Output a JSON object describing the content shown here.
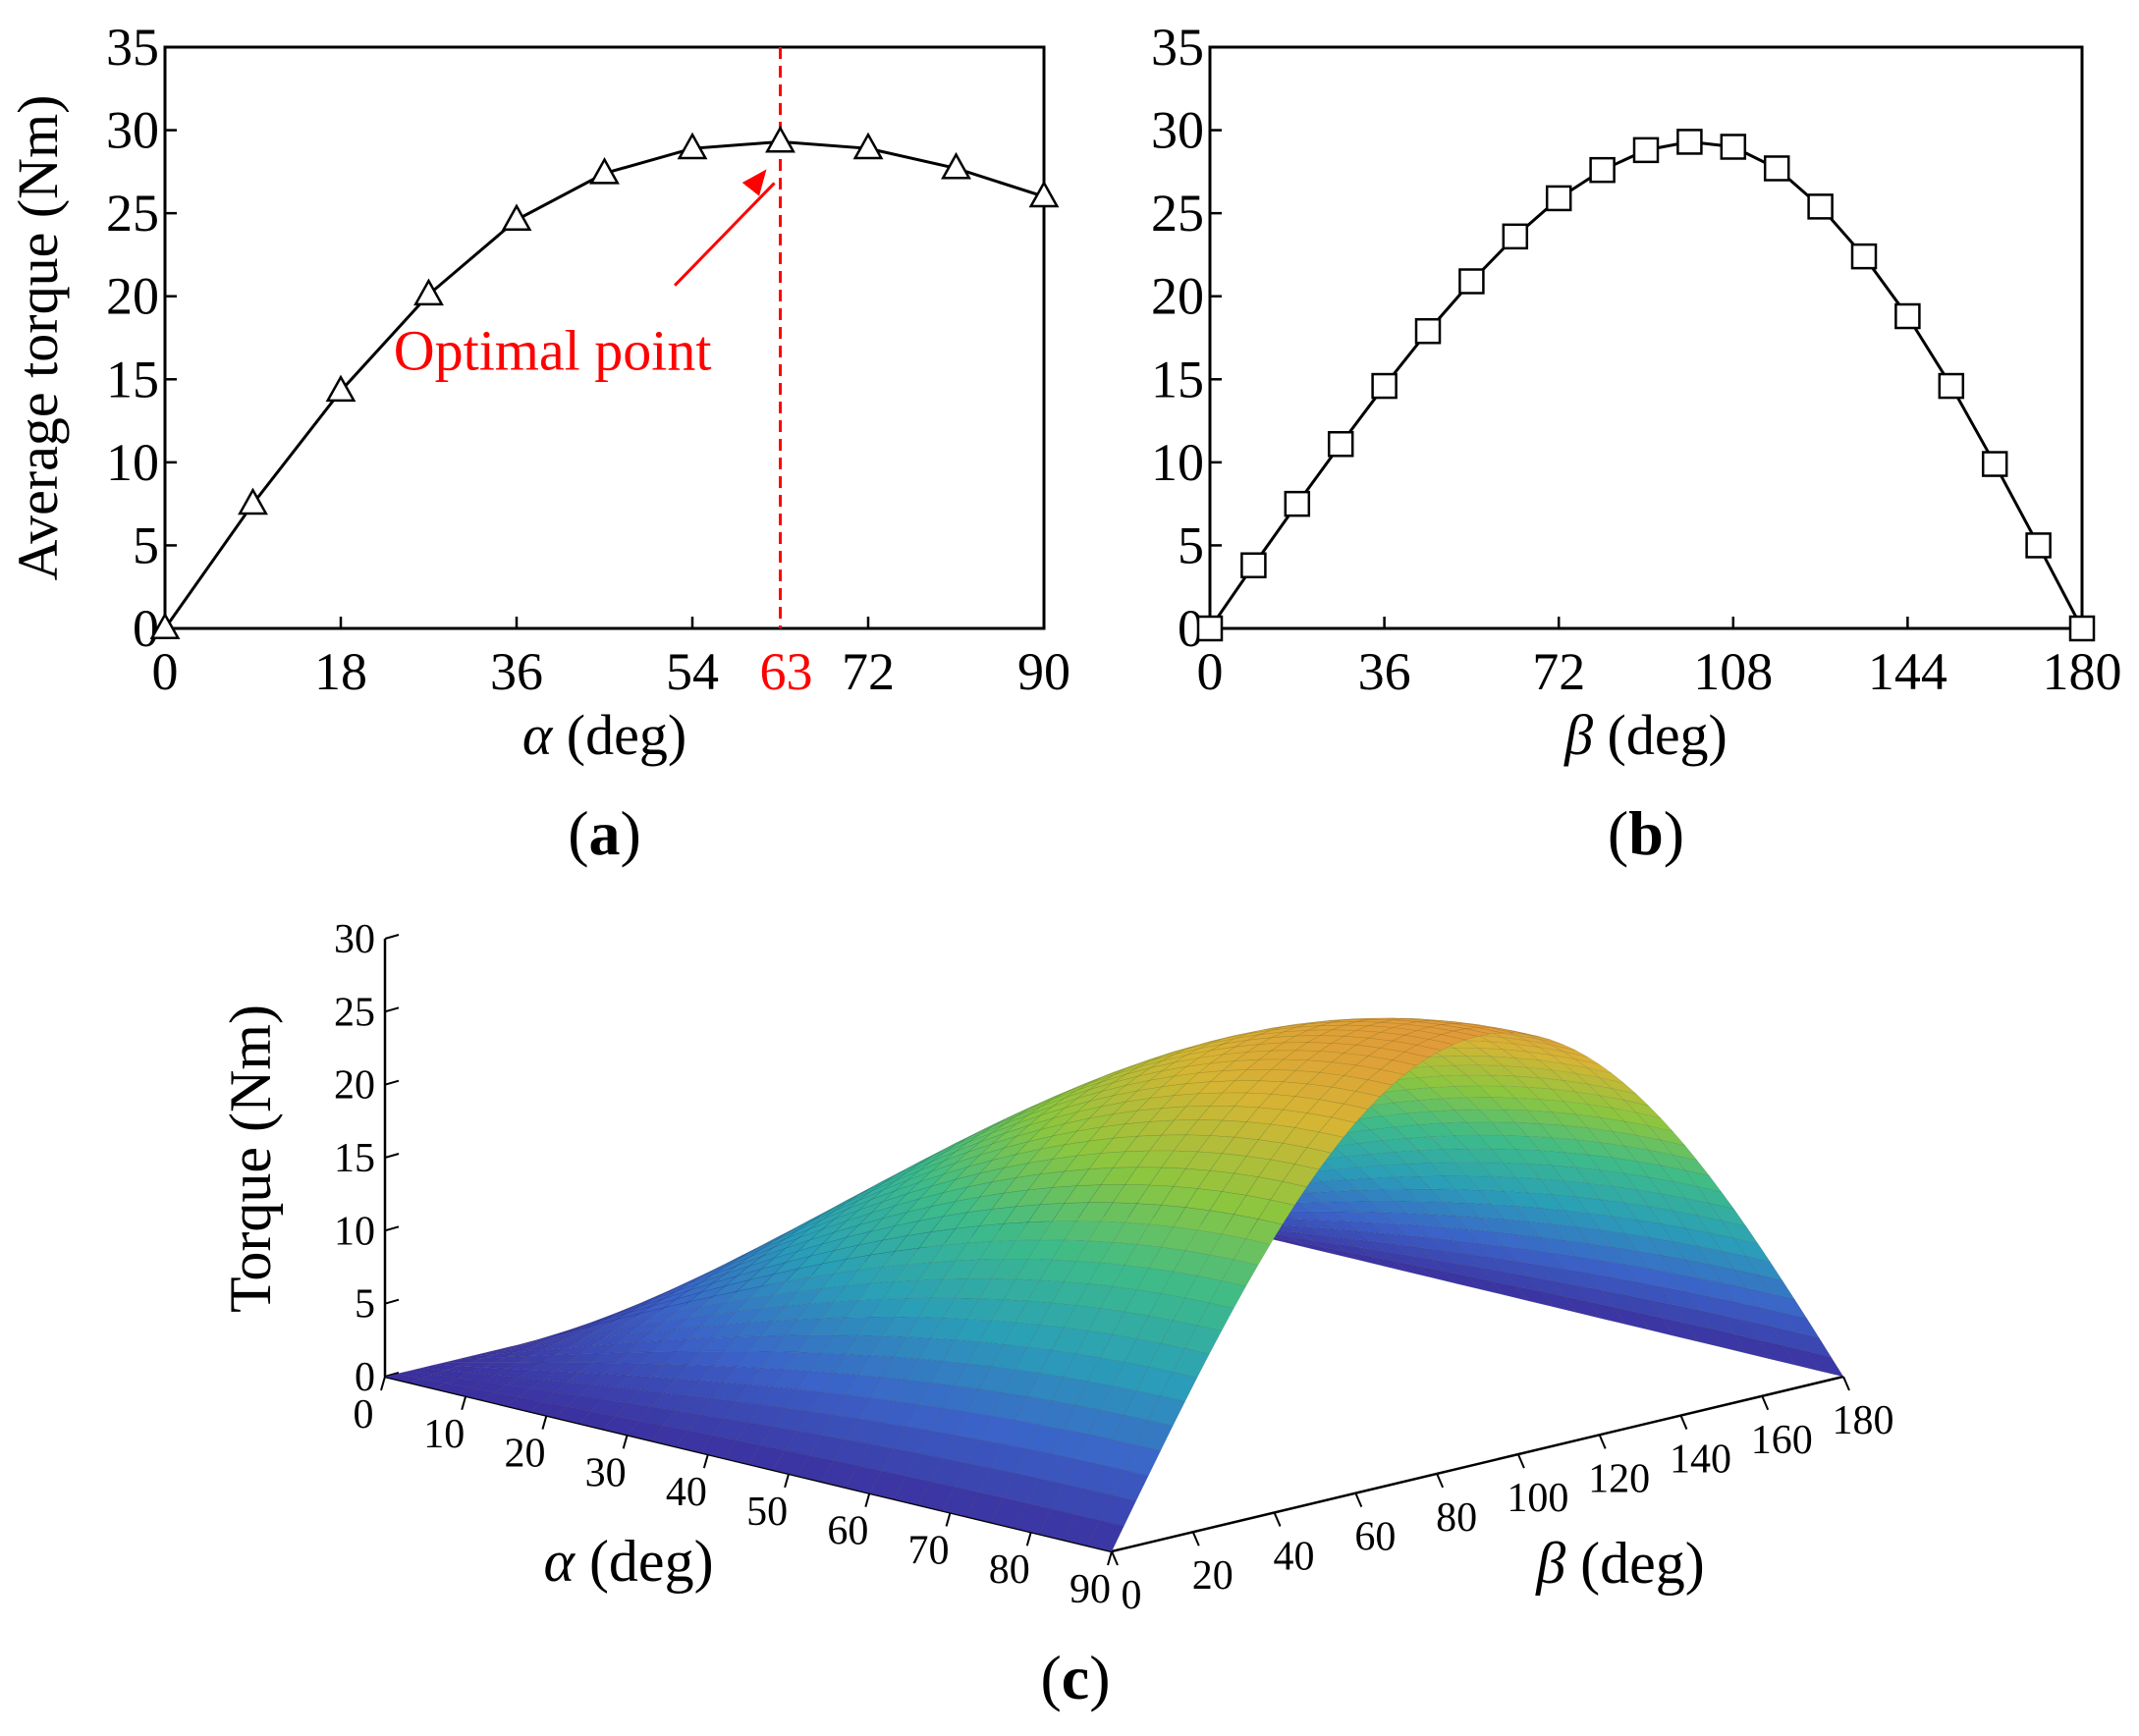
{
  "chart_data": [
    {
      "panel": "(a)",
      "panel_letter": "a",
      "type": "line",
      "marker": "triangle",
      "xlabel_symbol": "α",
      "xlabel_unit": "(deg)",
      "ylabel": "Average torque (Nm)",
      "xlim": [
        0,
        90
      ],
      "ylim": [
        0,
        35
      ],
      "xticks": [
        0,
        18,
        36,
        54,
        72,
        90
      ],
      "yticks": [
        0,
        5,
        10,
        15,
        20,
        25,
        30,
        35
      ],
      "x": [
        0,
        9,
        18,
        27,
        36,
        45,
        54,
        63,
        72,
        81,
        90
      ],
      "y": [
        0,
        7.5,
        14.3,
        20.1,
        24.6,
        27.4,
        28.9,
        29.3,
        28.9,
        27.7,
        26.0
      ],
      "optimal": {
        "x": 63,
        "tick_label": "63",
        "label": "Optimal point",
        "color": "#ff0000"
      }
    },
    {
      "panel": "(b)",
      "panel_letter": "b",
      "type": "line",
      "marker": "square",
      "xlabel_symbol": "β",
      "xlabel_unit": "(deg)",
      "ylabel": "",
      "xlim": [
        0,
        180
      ],
      "ylim": [
        0,
        35
      ],
      "xticks": [
        0,
        36,
        72,
        108,
        144,
        180
      ],
      "yticks": [
        0,
        5,
        10,
        15,
        20,
        25,
        30,
        35
      ],
      "x": [
        0,
        9,
        18,
        27,
        36,
        45,
        54,
        63,
        72,
        81,
        90,
        99,
        108,
        117,
        126,
        135,
        144,
        153,
        162,
        171,
        180
      ],
      "y": [
        0,
        3.8,
        7.5,
        11.1,
        14.6,
        17.9,
        20.9,
        23.6,
        25.9,
        27.6,
        28.8,
        29.3,
        29.0,
        27.7,
        25.4,
        22.4,
        18.8,
        14.6,
        9.9,
        5.0,
        0
      ]
    },
    {
      "panel": "(c)",
      "panel_letter": "c",
      "type": "surface",
      "xlabel_symbol": "α",
      "xlabel_unit": "(deg)",
      "ylabel_symbol": "β",
      "ylabel_unit": "(deg)",
      "zlabel": "Torque (Nm)",
      "xlim": [
        0,
        90
      ],
      "ylim": [
        0,
        180
      ],
      "zlim": [
        0,
        30
      ],
      "xticks": [
        0,
        10,
        20,
        30,
        40,
        50,
        60,
        70,
        80,
        90
      ],
      "yticks": [
        0,
        20,
        40,
        60,
        80,
        100,
        120,
        140,
        160,
        180
      ],
      "zticks": [
        0,
        5,
        10,
        15,
        20,
        25,
        30
      ],
      "z_peak": 29.3,
      "colormap": [
        "#3b2f9e",
        "#3b63c9",
        "#2a9fb8",
        "#3dbb8a",
        "#8cc63f",
        "#d6b534",
        "#e3963a"
      ]
    }
  ]
}
